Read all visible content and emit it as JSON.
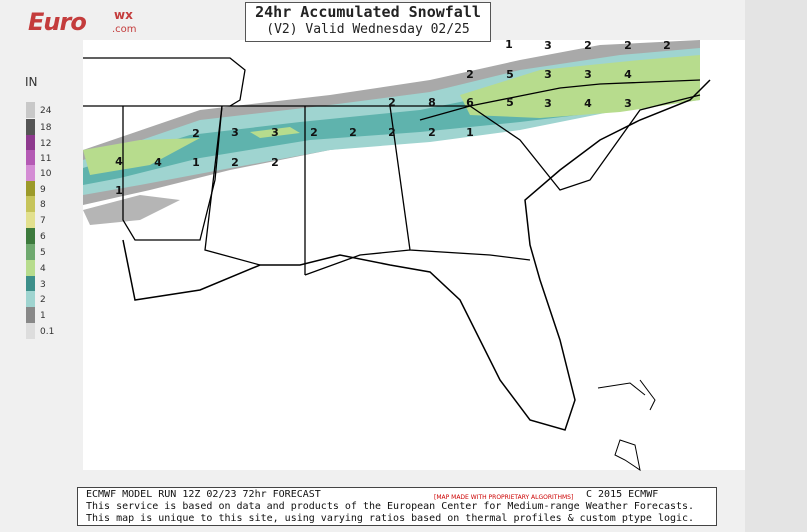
{
  "logo": {
    "name": "Euro",
    "sup": "wx",
    "domain": ".com"
  },
  "header": {
    "title": "24hr Accumulated Snowfall",
    "subtitle": "(V2) Valid Wednesday 02/25"
  },
  "legend": {
    "unit": "IN",
    "items": [
      {
        "label": "24",
        "color": "#c8c8c8"
      },
      {
        "label": "18",
        "color": "#555555"
      },
      {
        "label": "12",
        "color": "#8e3a8e"
      },
      {
        "label": "11",
        "color": "#b45ab4"
      },
      {
        "label": "10",
        "color": "#d48cd4"
      },
      {
        "label": "9",
        "color": "#9c9a2a"
      },
      {
        "label": "8",
        "color": "#c6c45a"
      },
      {
        "label": "7",
        "color": "#e2e08e"
      },
      {
        "label": "6",
        "color": "#3c7a3c"
      },
      {
        "label": "5",
        "color": "#6ea86e"
      },
      {
        "label": "4",
        "color": "#b7dc8d"
      },
      {
        "label": "3",
        "color": "#3d8f8a"
      },
      {
        "label": "2",
        "color": "#9fd4d0"
      },
      {
        "label": "1",
        "color": "#888888"
      },
      {
        "label": "0.1",
        "color": "#dddddd"
      }
    ]
  },
  "map_labels": [
    "1",
    "3",
    "2",
    "2",
    "2",
    "2",
    "5",
    "3",
    "3",
    "4",
    "2",
    "8",
    "6",
    "5",
    "3",
    "4",
    "3",
    "2",
    "3",
    "3",
    "2",
    "2",
    "2",
    "2",
    "1",
    "4",
    "4",
    "1",
    "2",
    "2",
    "1"
  ],
  "footer": {
    "line1": "ECMWF MODEL RUN 12Z 02/23 72hr FORECAST",
    "note": "[MAP MADE WITH PROPRIETARY ALGORITHMS]",
    "copyright": "C 2015 ECMWF",
    "line2": "This service is based on data and products of the European Center for Medium-range Weather Forecasts.",
    "line3": "This map is unique to this site, using varying ratios based on thermal profiles & custom ptype logic."
  }
}
